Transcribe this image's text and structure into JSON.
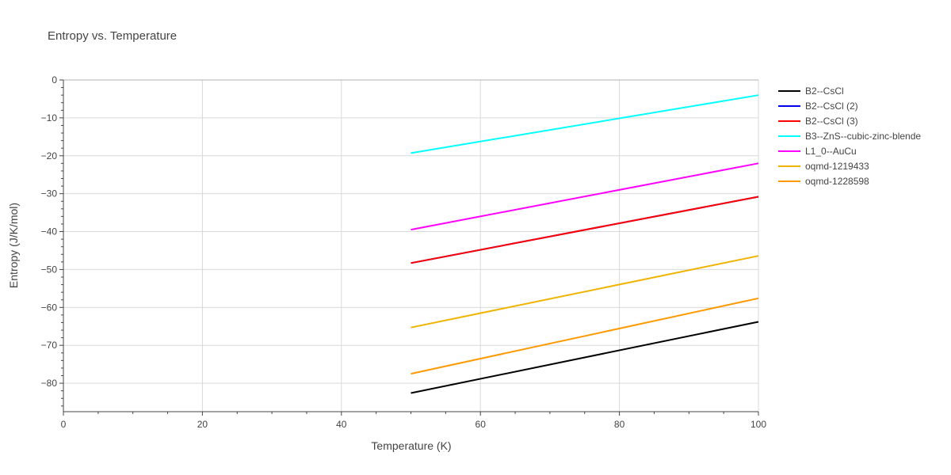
{
  "chart_data": {
    "type": "line",
    "title": "Entropy vs. Temperature",
    "xlabel": "Temperature (K)",
    "ylabel": "Entropy (J/K/mol)",
    "xlim": [
      0,
      100
    ],
    "ylim": [
      -87.5,
      0
    ],
    "xticks": [
      0,
      20,
      40,
      60,
      80,
      100
    ],
    "yticks": [
      0,
      -10,
      -20,
      -30,
      -40,
      -50,
      -60,
      -70,
      -80
    ],
    "ytick_labels": [
      "0",
      "−10",
      "−20",
      "−30",
      "−40",
      "−50",
      "−60",
      "−70",
      "−80"
    ],
    "grid": true,
    "legend_position": "top-right outside",
    "series": [
      {
        "name": "B2--CsCl",
        "color": "#000000",
        "x": [
          50,
          100
        ],
        "y": [
          -82.6,
          -63.8
        ]
      },
      {
        "name": "B2--CsCl (2)",
        "color": "#0000ee",
        "x": [
          50,
          100
        ],
        "y": [
          -48.3,
          -30.8
        ]
      },
      {
        "name": "B2--CsCl (3)",
        "color": "#ff0000",
        "x": [
          50,
          100
        ],
        "y": [
          -48.3,
          -30.8
        ]
      },
      {
        "name": "B3--ZnS--cubic-zinc-blende",
        "color": "#00ffff",
        "x": [
          50,
          100
        ],
        "y": [
          -19.3,
          -4.0
        ]
      },
      {
        "name": "L1_0--AuCu",
        "color": "#ff00ff",
        "x": [
          50,
          100
        ],
        "y": [
          -39.5,
          -22.0
        ]
      },
      {
        "name": "oqmd-1219433",
        "color": "#f0b400",
        "x": [
          50,
          100
        ],
        "y": [
          -65.3,
          -46.4
        ]
      },
      {
        "name": "oqmd-1228598",
        "color": "#ff9900",
        "x": [
          50,
          100
        ],
        "y": [
          -77.5,
          -57.6
        ]
      }
    ]
  }
}
